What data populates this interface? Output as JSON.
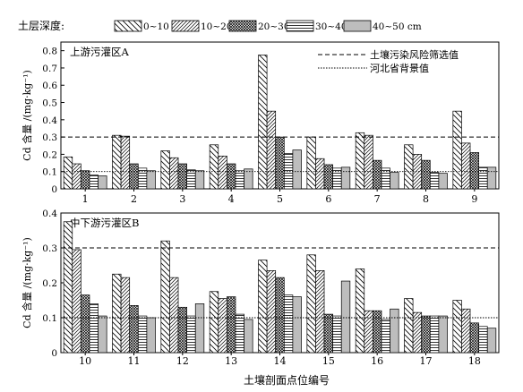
{
  "chart_data": {
    "type": "bar",
    "legend": {
      "title": "土层深度:",
      "placement": "top",
      "entries": [
        {
          "name": "0~10 cm",
          "pattern": "diag-down-wide"
        },
        {
          "name": "10~20 cm",
          "pattern": "diag-up"
        },
        {
          "name": "20~30 cm",
          "pattern": "crosshatch"
        },
        {
          "name": "30~40 cm",
          "pattern": "horizontal"
        },
        {
          "name": "40~50 cm",
          "pattern": "gray"
        }
      ]
    },
    "reference_lines": [
      {
        "name": "土壤污染风险筛选值",
        "value": 0.3,
        "style": "dashed"
      },
      {
        "name": "河北省背景值",
        "value": 0.1,
        "style": "dotted"
      }
    ],
    "xlabel": "土壤剖面点位编号",
    "panels": [
      {
        "title": "上游污灌区A",
        "ylabel": "Cd 含量 /(mg·kg⁻¹)",
        "ylim": [
          0,
          0.85
        ],
        "yticks": [
          "0",
          "0.1",
          "0.2",
          "0.3",
          "0.4",
          "0.5",
          "0.6",
          "0.7",
          "0.8"
        ],
        "categories": [
          "1",
          "2",
          "3",
          "4",
          "5",
          "6",
          "7",
          "8",
          "9"
        ],
        "series": [
          {
            "name": "0~10 cm",
            "values": [
              0.185,
              0.31,
              0.22,
              0.255,
              0.775,
              0.3,
              0.325,
              0.255,
              0.45
            ]
          },
          {
            "name": "10~20 cm",
            "values": [
              0.145,
              0.305,
              0.18,
              0.19,
              0.45,
              0.175,
              0.31,
              0.2,
              0.265
            ]
          },
          {
            "name": "20~30 cm",
            "values": [
              0.105,
              0.145,
              0.145,
              0.145,
              0.3,
              0.14,
              0.165,
              0.165,
              0.21
            ]
          },
          {
            "name": "30~40 cm",
            "values": [
              0.08,
              0.12,
              0.11,
              0.105,
              0.205,
              0.12,
              0.12,
              0.095,
              0.125
            ]
          },
          {
            "name": "40~50 cm",
            "values": [
              0.075,
              0.105,
              0.105,
              0.115,
              0.225,
              0.125,
              0.095,
              0.09,
              0.125
            ]
          }
        ]
      },
      {
        "title": "中下游污灌区B",
        "ylabel": "Cd 含量 /(mg·kg⁻¹)",
        "ylim": [
          0,
          0.4
        ],
        "yticks": [
          "0",
          "0.1",
          "0.2",
          "0.3",
          "0.4"
        ],
        "categories": [
          "10",
          "11",
          "12",
          "13",
          "14",
          "15",
          "16",
          "17",
          "18"
        ],
        "series": [
          {
            "name": "0~10 cm",
            "values": [
              0.375,
              0.225,
              0.32,
              0.175,
              0.265,
              0.28,
              0.24,
              0.155,
              0.15
            ]
          },
          {
            "name": "10~20 cm",
            "values": [
              0.295,
              0.215,
              0.215,
              0.155,
              0.235,
              0.235,
              0.12,
              0.115,
              0.125
            ]
          },
          {
            "name": "20~30 cm",
            "values": [
              0.165,
              0.135,
              0.13,
              0.16,
              0.215,
              0.11,
              0.12,
              0.105,
              0.085
            ]
          },
          {
            "name": "30~40 cm",
            "values": [
              0.14,
              0.105,
              0.105,
              0.11,
              0.165,
              0.105,
              0.095,
              0.105,
              0.075
            ]
          },
          {
            "name": "40~50 cm",
            "values": [
              0.105,
              0.1,
              0.14,
              0.095,
              0.16,
              0.205,
              0.125,
              0.105,
              0.07
            ]
          }
        ]
      }
    ]
  }
}
